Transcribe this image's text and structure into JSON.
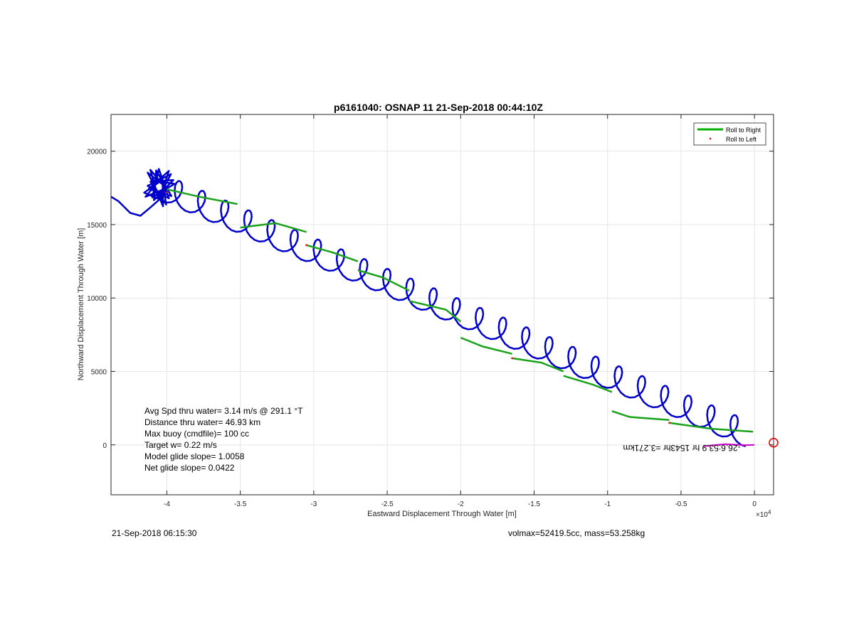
{
  "chart_data": {
    "type": "line",
    "title": "p6161040: OSNAP 11 21-Sep-2018 00:44:10Z",
    "xlabel": "Eastward Displacement Through Water [m]",
    "ylabel": "Northward Displacement Through Water [m]",
    "x_exponent_label": "×10",
    "x_exponent_power": "4",
    "xlim": [
      -43800,
      1300
    ],
    "ylim": [
      -3400,
      22500
    ],
    "x_ticks": [
      -40000,
      -35000,
      -30000,
      -25000,
      -20000,
      -15000,
      -10000,
      -5000,
      0
    ],
    "x_tick_labels": [
      "-4",
      "-3.5",
      "-3",
      "-2.5",
      "-2",
      "-1.5",
      "-1",
      "-0.5",
      "0"
    ],
    "y_ticks": [
      0,
      5000,
      10000,
      15000,
      20000
    ],
    "y_tick_labels": [
      "0",
      "5000",
      "10000",
      "15000",
      "20000"
    ],
    "grid": true,
    "legend_position": "top-right",
    "legend": [
      {
        "label": "Roll to Right",
        "color": "#00b000",
        "style": "line"
      },
      {
        "label": "Roll to Left",
        "color": "#ff0000",
        "style": "dot"
      }
    ],
    "series": [
      {
        "name": "Roll to Right",
        "color": "#1aa31a",
        "segments": [
          {
            "x": [
              -40000,
              -37800,
              -35200
            ],
            "y": [
              17400,
              16900,
              16400
            ]
          },
          {
            "x": [
              -35000,
              -32600,
              -30500
            ],
            "y": [
              14800,
              15100,
              14500
            ]
          },
          {
            "x": [
              -30500,
              -28700,
              -27000
            ],
            "y": [
              13600,
              13100,
              12500
            ]
          },
          {
            "x": [
              -27000,
              -25300,
              -23500
            ],
            "y": [
              11900,
              11400,
              10500
            ]
          },
          {
            "x": [
              -23500,
              -21000,
              -20000
            ],
            "y": [
              9800,
              9200,
              8400
            ]
          },
          {
            "x": [
              -20000,
              -18500,
              -16500
            ],
            "y": [
              7300,
              6700,
              6200
            ]
          },
          {
            "x": [
              -16500,
              -14500,
              -13000
            ],
            "y": [
              5900,
              5600,
              5000
            ]
          },
          {
            "x": [
              -13000,
              -11000,
              -9700
            ],
            "y": [
              4700,
              4100,
              3600
            ]
          },
          {
            "x": [
              -9700,
              -8500,
              -5800
            ],
            "y": [
              2300,
              1900,
              1700
            ]
          },
          {
            "x": [
              -5800,
              -3000,
              -100
            ],
            "y": [
              1500,
              1100,
              900
            ]
          }
        ]
      },
      {
        "name": "Roll to Left",
        "color": "#ff0000",
        "points": [
          [
            -40000,
            17200
          ],
          [
            -30500,
            13600
          ],
          [
            -16500,
            5900
          ],
          [
            -5800,
            1500
          ]
        ]
      },
      {
        "name": "path",
        "color": "#0000cc",
        "loop": {
          "center": [
            -40500,
            17600
          ],
          "spread": [
            1100,
            1400
          ],
          "count": 26
        },
        "x": [
          -43800,
          -43300,
          -42500,
          -41800,
          -41200,
          -40400,
          -40000
        ],
        "y": [
          16900,
          16600,
          15800,
          15600,
          16100,
          16800,
          17400
        ],
        "wiggle": {
          "x0": -40000,
          "y0": 17400,
          "x1": -600,
          "y1": 800,
          "waves": 25,
          "amp_x": 600,
          "amp_y": 900
        }
      },
      {
        "name": "current",
        "color": "#cc00cc",
        "x": [
          -3500,
          -2000,
          -600,
          0
        ],
        "y": [
          -100,
          50,
          -20,
          0
        ]
      }
    ],
    "target_marker": {
      "x": 1300,
      "y": 150,
      "color": "#ff0000"
    },
    "annotation_flipped": "-26.6:53.9 hr 1543hr =3.271km",
    "annotation_lines": [
      "Avg Spd thru water=  3.14 m/s @ 291.1 °T",
      "Distance thru water= 46.93 km",
      "Max buoy (cmdfile)= 100 cc",
      "Target w= 0.22 m/s",
      "Model glide slope= 1.0058",
      "Net glide slope= 0.0422"
    ]
  },
  "footer": {
    "timestamp": "21-Sep-2018 06:15:30",
    "volmax_mass": "volmax=52419.5cc, mass=53.258kg"
  }
}
